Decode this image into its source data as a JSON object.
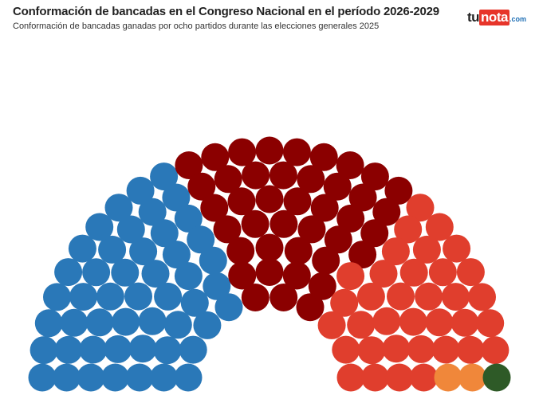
{
  "header": {
    "title": "Conformación de bancadas en el Congreso Nacional en el período 2026-2029",
    "subtitle": "Conformación de bancadas ganadas por ocho partidos durante las elecciones generales 2025"
  },
  "logo": {
    "tu": "tu",
    "nota": "nota",
    "dom": ".com"
  },
  "chart_data": {
    "type": "parliament",
    "total_seats": 128,
    "series": [
      {
        "seats": 49,
        "color": "#2a78b8"
      },
      {
        "seats": 41,
        "color": "#8b0000"
      },
      {
        "seats": 35,
        "color": "#e03e2d"
      },
      {
        "seats": 2,
        "color": "#f0873a"
      },
      {
        "seats": 1,
        "color": "#2e5a27"
      }
    ]
  }
}
